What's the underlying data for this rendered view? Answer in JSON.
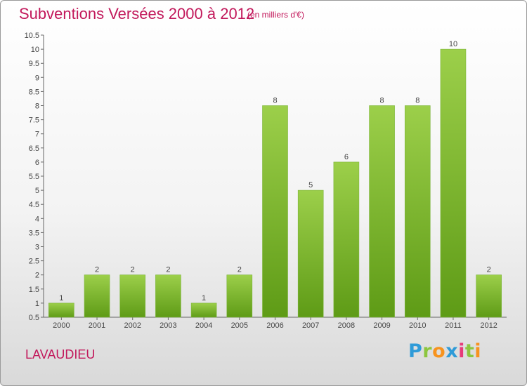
{
  "title": "Subventions Versées 2000 à 2012",
  "subtitle": "(en milliers d'€)",
  "place": "LAVAUDIEU",
  "logo_text": "Proxiti",
  "colors": {
    "title": "#c2185b",
    "bar_top": "#9ccf4a",
    "bar_bottom": "#5e9b16"
  },
  "chart_data": {
    "type": "bar",
    "title": "Subventions Versées 2000 à 2012",
    "subtitle": "(en milliers d'€)",
    "xlabel": "",
    "ylabel": "",
    "categories": [
      "2000",
      "2001",
      "2002",
      "2003",
      "2004",
      "2005",
      "2006",
      "2007",
      "2008",
      "2009",
      "2010",
      "2011",
      "2012"
    ],
    "values": [
      1,
      2,
      2,
      2,
      1,
      2,
      8,
      5,
      6,
      8,
      8,
      10,
      2
    ],
    "value_labels": [
      "1",
      "2",
      "2",
      "2",
      "1",
      "2",
      "8",
      "5",
      "6",
      "8",
      "8",
      "10",
      "2"
    ],
    "ylim": [
      0.5,
      10.5
    ],
    "yticks": [
      "0.5",
      "1",
      "1.5",
      "2",
      "2.5",
      "3",
      "3.5",
      "4",
      "4.5",
      "5",
      "5.5",
      "6",
      "6.5",
      "7",
      "7.5",
      "8",
      "8.5",
      "9",
      "9.5",
      "10",
      "10.5"
    ],
    "grid": false,
    "legend": "none"
  }
}
